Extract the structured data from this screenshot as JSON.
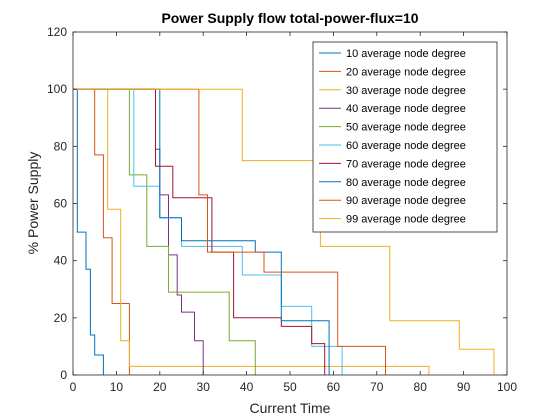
{
  "chart_data": {
    "type": "line",
    "step": true,
    "title": "Power Supply flow total-power-flux=10",
    "xlabel": "Current Time",
    "ylabel": "% Power Supply",
    "xlim": [
      0,
      100
    ],
    "ylim": [
      0,
      120
    ],
    "xticks": [
      "0",
      "10",
      "20",
      "30",
      "40",
      "50",
      "60",
      "70",
      "80",
      "90",
      "100"
    ],
    "yticks": [
      "0",
      "20",
      "40",
      "60",
      "80",
      "100",
      "120"
    ],
    "legend_position": "top-right",
    "grid": false,
    "series": [
      {
        "name": "10 average node degree",
        "color": "#0072BD",
        "points": [
          [
            0,
            100
          ],
          [
            1,
            100
          ],
          [
            1,
            50
          ],
          [
            3,
            50
          ],
          [
            3,
            37
          ],
          [
            4,
            37
          ],
          [
            4,
            14
          ],
          [
            5,
            14
          ],
          [
            5,
            7
          ],
          [
            7,
            7
          ],
          [
            7,
            0
          ]
        ]
      },
      {
        "name": "20 average node degree",
        "color": "#D95319",
        "points": [
          [
            0,
            100
          ],
          [
            5,
            100
          ],
          [
            5,
            77
          ],
          [
            7,
            77
          ],
          [
            7,
            48
          ],
          [
            9,
            48
          ],
          [
            9,
            25
          ],
          [
            13,
            25
          ],
          [
            13,
            0
          ]
        ]
      },
      {
        "name": "30 average node degree",
        "color": "#EDB120",
        "points": [
          [
            0,
            100
          ],
          [
            8,
            100
          ],
          [
            8,
            58
          ],
          [
            11,
            58
          ],
          [
            11,
            12
          ],
          [
            13,
            12
          ],
          [
            13,
            3
          ],
          [
            82,
            3
          ],
          [
            82,
            0
          ]
        ]
      },
      {
        "name": "40 average node degree",
        "color": "#7E2F8E",
        "points": [
          [
            0,
            100
          ],
          [
            19,
            100
          ],
          [
            19,
            79
          ],
          [
            20,
            79
          ],
          [
            20,
            63
          ],
          [
            22,
            63
          ],
          [
            22,
            42
          ],
          [
            24,
            42
          ],
          [
            24,
            28
          ],
          [
            25,
            28
          ],
          [
            25,
            22
          ],
          [
            28,
            22
          ],
          [
            28,
            12
          ],
          [
            30,
            12
          ],
          [
            30,
            0
          ]
        ]
      },
      {
        "name": "50 average node degree",
        "color": "#77AC30",
        "points": [
          [
            0,
            100
          ],
          [
            13,
            100
          ],
          [
            13,
            70
          ],
          [
            17,
            70
          ],
          [
            17,
            45
          ],
          [
            22,
            45
          ],
          [
            22,
            29
          ],
          [
            36,
            29
          ],
          [
            36,
            12
          ],
          [
            42,
            12
          ],
          [
            42,
            0
          ]
        ]
      },
      {
        "name": "60 average node degree",
        "color": "#4DBEEE",
        "points": [
          [
            0,
            100
          ],
          [
            14,
            100
          ],
          [
            14,
            66
          ],
          [
            20,
            66
          ],
          [
            20,
            55
          ],
          [
            25,
            55
          ],
          [
            25,
            45
          ],
          [
            39,
            45
          ],
          [
            39,
            35
          ],
          [
            48,
            35
          ],
          [
            48,
            24
          ],
          [
            55,
            24
          ],
          [
            55,
            10
          ],
          [
            62,
            10
          ],
          [
            62,
            0
          ]
        ]
      },
      {
        "name": "70 average node degree",
        "color": "#A2142F",
        "points": [
          [
            0,
            100
          ],
          [
            19,
            100
          ],
          [
            19,
            73
          ],
          [
            23,
            73
          ],
          [
            23,
            62
          ],
          [
            32,
            62
          ],
          [
            32,
            43
          ],
          [
            37,
            43
          ],
          [
            37,
            20
          ],
          [
            48,
            20
          ],
          [
            48,
            17
          ],
          [
            55,
            17
          ],
          [
            55,
            11
          ],
          [
            58,
            11
          ],
          [
            58,
            0
          ]
        ]
      },
      {
        "name": "80 average node degree",
        "color": "#0072BD",
        "points": [
          [
            0,
            100
          ],
          [
            20,
            100
          ],
          [
            20,
            55
          ],
          [
            25,
            55
          ],
          [
            25,
            47
          ],
          [
            42,
            47
          ],
          [
            42,
            43
          ],
          [
            48,
            43
          ],
          [
            48,
            19
          ],
          [
            59,
            19
          ],
          [
            59,
            0
          ]
        ]
      },
      {
        "name": "90 average node degree",
        "color": "#D95319",
        "points": [
          [
            0,
            100
          ],
          [
            29,
            100
          ],
          [
            29,
            63
          ],
          [
            31,
            63
          ],
          [
            31,
            43
          ],
          [
            44,
            43
          ],
          [
            44,
            36
          ],
          [
            61,
            36
          ],
          [
            61,
            10
          ],
          [
            72,
            10
          ],
          [
            72,
            0
          ]
        ]
      },
      {
        "name": "99 average node degree",
        "color": "#EDB120",
        "points": [
          [
            0,
            100
          ],
          [
            39,
            100
          ],
          [
            39,
            75
          ],
          [
            57,
            75
          ],
          [
            57,
            45
          ],
          [
            73,
            45
          ],
          [
            73,
            19
          ],
          [
            89,
            19
          ],
          [
            89,
            9
          ],
          [
            97,
            9
          ],
          [
            97,
            0
          ]
        ]
      }
    ]
  }
}
